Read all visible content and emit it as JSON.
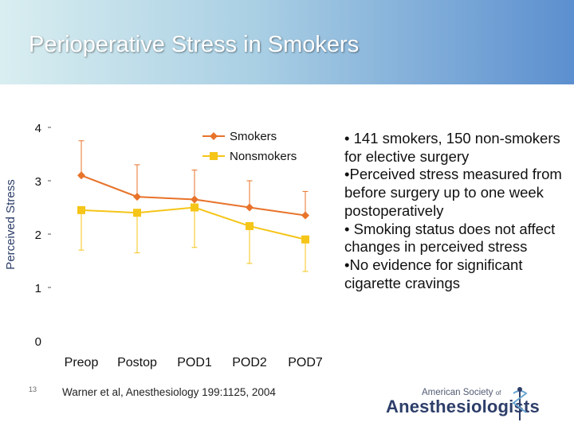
{
  "slide": {
    "title": "Perioperative Stress in Smokers",
    "slide_number": "13",
    "citation": "Warner et al, Anesthesiology 199:1125, 2004",
    "bullets": [
      "• 141 smokers, 150 non-smokers for elective surgery",
      "•Perceived stress measured from before surgery up to one week postoperatively",
      "• Smoking status does not affect changes in perceived stress",
      "•No evidence for significant cigarette cravings"
    ],
    "logo": {
      "line1": "American Society",
      "line1_small": "of",
      "line2": "Anesthesiologists",
      "icon": "caduceus-icon"
    }
  },
  "chart_data": {
    "type": "line",
    "categories": [
      "Preop",
      "Postop",
      "POD1",
      "POD2",
      "POD7"
    ],
    "ylabel": "Perceived Stress",
    "xlabel": "",
    "ylim": [
      0,
      4
    ],
    "yticks": [
      "0",
      "1",
      "2",
      "3",
      "4"
    ],
    "grid": false,
    "legend_position": "top-right",
    "series": [
      {
        "name": "Smokers",
        "color": "#e8732a",
        "marker": "diamond",
        "values": [
          3.1,
          2.7,
          2.65,
          2.5,
          2.35
        ],
        "error_upper": [
          3.75,
          3.3,
          3.2,
          3.0,
          2.8
        ],
        "error_lower": [
          null,
          null,
          null,
          null,
          null
        ]
      },
      {
        "name": "Nonsmokers",
        "color": "#f5c518",
        "marker": "square",
        "values": [
          2.45,
          2.4,
          2.5,
          2.15,
          1.9
        ],
        "error_upper": [
          null,
          null,
          null,
          null,
          null
        ],
        "error_lower": [
          1.7,
          1.65,
          1.75,
          1.45,
          1.3
        ]
      }
    ]
  }
}
